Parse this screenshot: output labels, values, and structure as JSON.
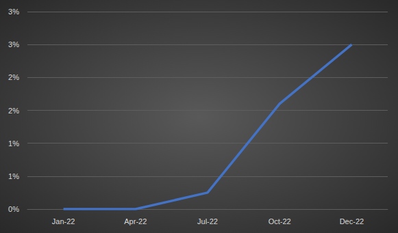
{
  "chart_data": {
    "type": "line",
    "categories": [
      "Jan-22",
      "Apr-22",
      "Jul-22",
      "Oct-22",
      "Dec-22"
    ],
    "values": [
      0,
      0,
      0.25,
      1.6,
      2.5
    ],
    "color": "#4472c4",
    "ylim": [
      0,
      3
    ],
    "yticks": [
      {
        "value": 0,
        "label": "0%"
      },
      {
        "value": 0.5,
        "label": "1%"
      },
      {
        "value": 1,
        "label": "1%"
      },
      {
        "value": 1.5,
        "label": "2%"
      },
      {
        "value": 2,
        "label": "2%"
      },
      {
        "value": 2.5,
        "label": "3%"
      },
      {
        "value": 3,
        "label": "3%"
      }
    ],
    "grid": true
  }
}
